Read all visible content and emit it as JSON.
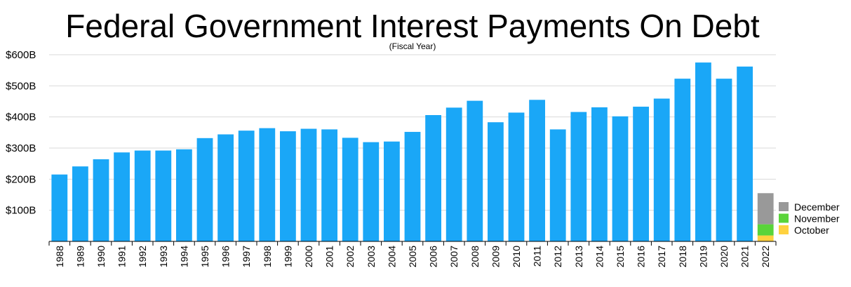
{
  "chart_data": {
    "type": "bar",
    "title": "Federal Government Interest Payments On Debt",
    "subtitle": "(Fiscal Year)",
    "ylim": [
      0,
      600
    ],
    "yticks": [
      "$100B",
      "$200B",
      "$300B",
      "$400B",
      "$500B",
      "$600B"
    ],
    "ytick_values": [
      100,
      200,
      300,
      400,
      500,
      600
    ],
    "grid": true,
    "bar_color": "#1aa7f7",
    "categories": [
      "1988",
      "1989",
      "1990",
      "1991",
      "1992",
      "1993",
      "1994",
      "1995",
      "1996",
      "1997",
      "1998",
      "1999",
      "2000",
      "2001",
      "2002",
      "2003",
      "2004",
      "2005",
      "2006",
      "2007",
      "2008",
      "2009",
      "2010",
      "2011",
      "2012",
      "2013",
      "2014",
      "2015",
      "2016",
      "2017",
      "2018",
      "2019",
      "2020",
      "2021",
      "2022"
    ],
    "values": [
      215,
      241,
      264,
      286,
      292,
      292,
      296,
      332,
      344,
      356,
      364,
      354,
      362,
      360,
      333,
      319,
      321,
      352,
      406,
      430,
      452,
      383,
      414,
      455,
      360,
      416,
      431,
      402,
      433,
      459,
      523,
      575,
      523,
      562,
      null
    ],
    "stacked_category": "2022",
    "stack": [
      {
        "name": "October",
        "value": 19,
        "color": "#ffd23f"
      },
      {
        "name": "November",
        "value": 36,
        "color": "#5ad43a"
      },
      {
        "name": "December",
        "value": 100,
        "color": "#999999"
      }
    ],
    "legend": {
      "placement": "bottom-right",
      "order": [
        "December",
        "November",
        "October"
      ]
    }
  }
}
